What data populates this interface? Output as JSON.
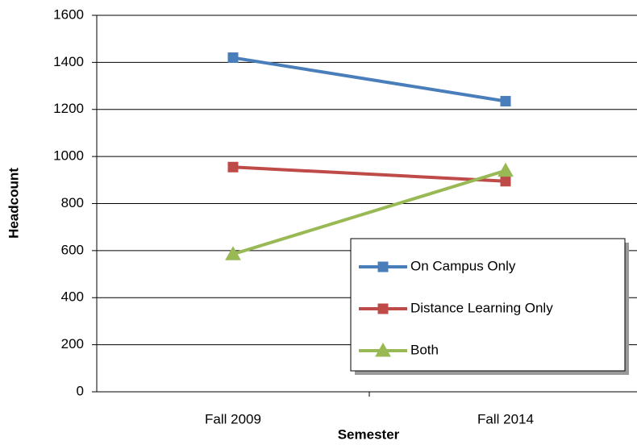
{
  "chart_data": {
    "type": "line",
    "x_label": "Semester",
    "y_label": "Headcount",
    "categories": [
      "Fall 2009",
      "Fall 2014"
    ],
    "series": [
      {
        "name": "On Campus Only",
        "color": "#4a7ebb",
        "marker": "square",
        "values": [
          1420,
          1235
        ]
      },
      {
        "name": "Distance Learning Only",
        "color": "#be4b48",
        "marker": "square",
        "values": [
          955,
          895
        ]
      },
      {
        "name": "Both",
        "color": "#98b954",
        "marker": "triangle",
        "values": [
          585,
          940
        ]
      }
    ],
    "ylim": [
      0,
      1600
    ],
    "yticks": [
      0,
      200,
      400,
      600,
      800,
      1000,
      1200,
      1400,
      1600
    ],
    "grid": true,
    "legend": "lower right"
  }
}
